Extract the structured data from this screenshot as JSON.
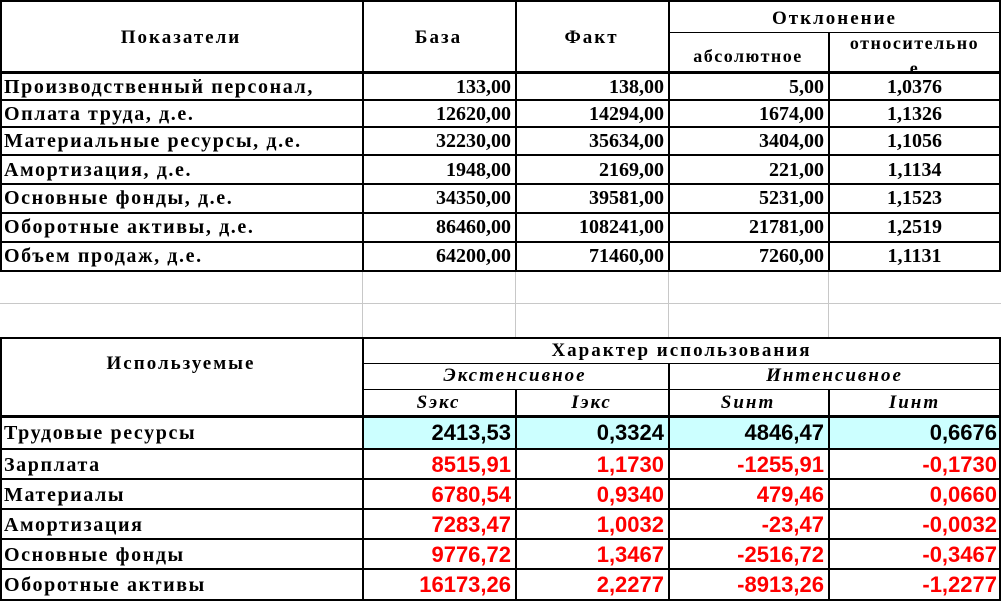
{
  "table1": {
    "headers": {
      "indicator": "Показатели",
      "base": "База",
      "fact": "Факт",
      "deviation": "Отклонение",
      "absolute": "абсолютное",
      "relative": "относительно",
      "relative_overflow": "е"
    },
    "rows": [
      {
        "name": "Производственный персонал,",
        "base": "133,00",
        "fact": "138,00",
        "abs": "5,00",
        "rel": "1,0376"
      },
      {
        "name": "Оплата труда, д.е.",
        "base": "12620,00",
        "fact": "14294,00",
        "abs": "1674,00",
        "rel": "1,1326"
      },
      {
        "name": "Материальные ресурсы, д.е.",
        "base": "32230,00",
        "fact": "35634,00",
        "abs": "3404,00",
        "rel": "1,1056"
      },
      {
        "name": "Амортизация, д.е.",
        "base": "1948,00",
        "fact": "2169,00",
        "abs": "221,00",
        "rel": "1,1134"
      },
      {
        "name": "Основные фонды, д.е.",
        "base": "34350,00",
        "fact": "39581,00",
        "abs": "5231,00",
        "rel": "1,1523"
      },
      {
        "name": "Оборотные активы, д.е.",
        "base": "86460,00",
        "fact": "108241,00",
        "abs": "21781,00",
        "rel": "1,2519"
      },
      {
        "name": "Объем продаж, д.е.",
        "base": "64200,00",
        "fact": "71460,00",
        "abs": "7260,00",
        "rel": "1,1131"
      }
    ]
  },
  "table2": {
    "headers": {
      "used": "Используемые",
      "character": "Характер использования",
      "extensive": "Экстенсивное",
      "intensive": "Интенсивное",
      "s_ext": "Sэкс",
      "i_ext": "Iэкс",
      "s_int": "Sинт",
      "i_int": "Iинт"
    },
    "rows": [
      {
        "name": "Трудовые ресурсы",
        "s_ext": "2413,53",
        "i_ext": "0,3324",
        "s_int": "4846,47",
        "i_int": "0,6676",
        "highlight": true
      },
      {
        "name": "Зарплата",
        "s_ext": "8515,91",
        "i_ext": "1,1730",
        "s_int": "-1255,91",
        "i_int": "-0,1730",
        "highlight": false
      },
      {
        "name": "Материалы",
        "s_ext": "6780,54",
        "i_ext": "0,9340",
        "s_int": "479,46",
        "i_int": "0,0660",
        "highlight": false
      },
      {
        "name": "Амортизация",
        "s_ext": "7283,47",
        "i_ext": "1,0032",
        "s_int": "-23,47",
        "i_int": "-0,0032",
        "highlight": false
      },
      {
        "name": "Основные фонды",
        "s_ext": "9776,72",
        "i_ext": "1,3467",
        "s_int": "-2516,72",
        "i_int": "-0,3467",
        "highlight": false
      },
      {
        "name": "Оборотные активы",
        "s_ext": "16173,26",
        "i_ext": "2,2277",
        "s_int": "-8913,26",
        "i_int": "-1,2277",
        "highlight": false
      }
    ]
  }
}
